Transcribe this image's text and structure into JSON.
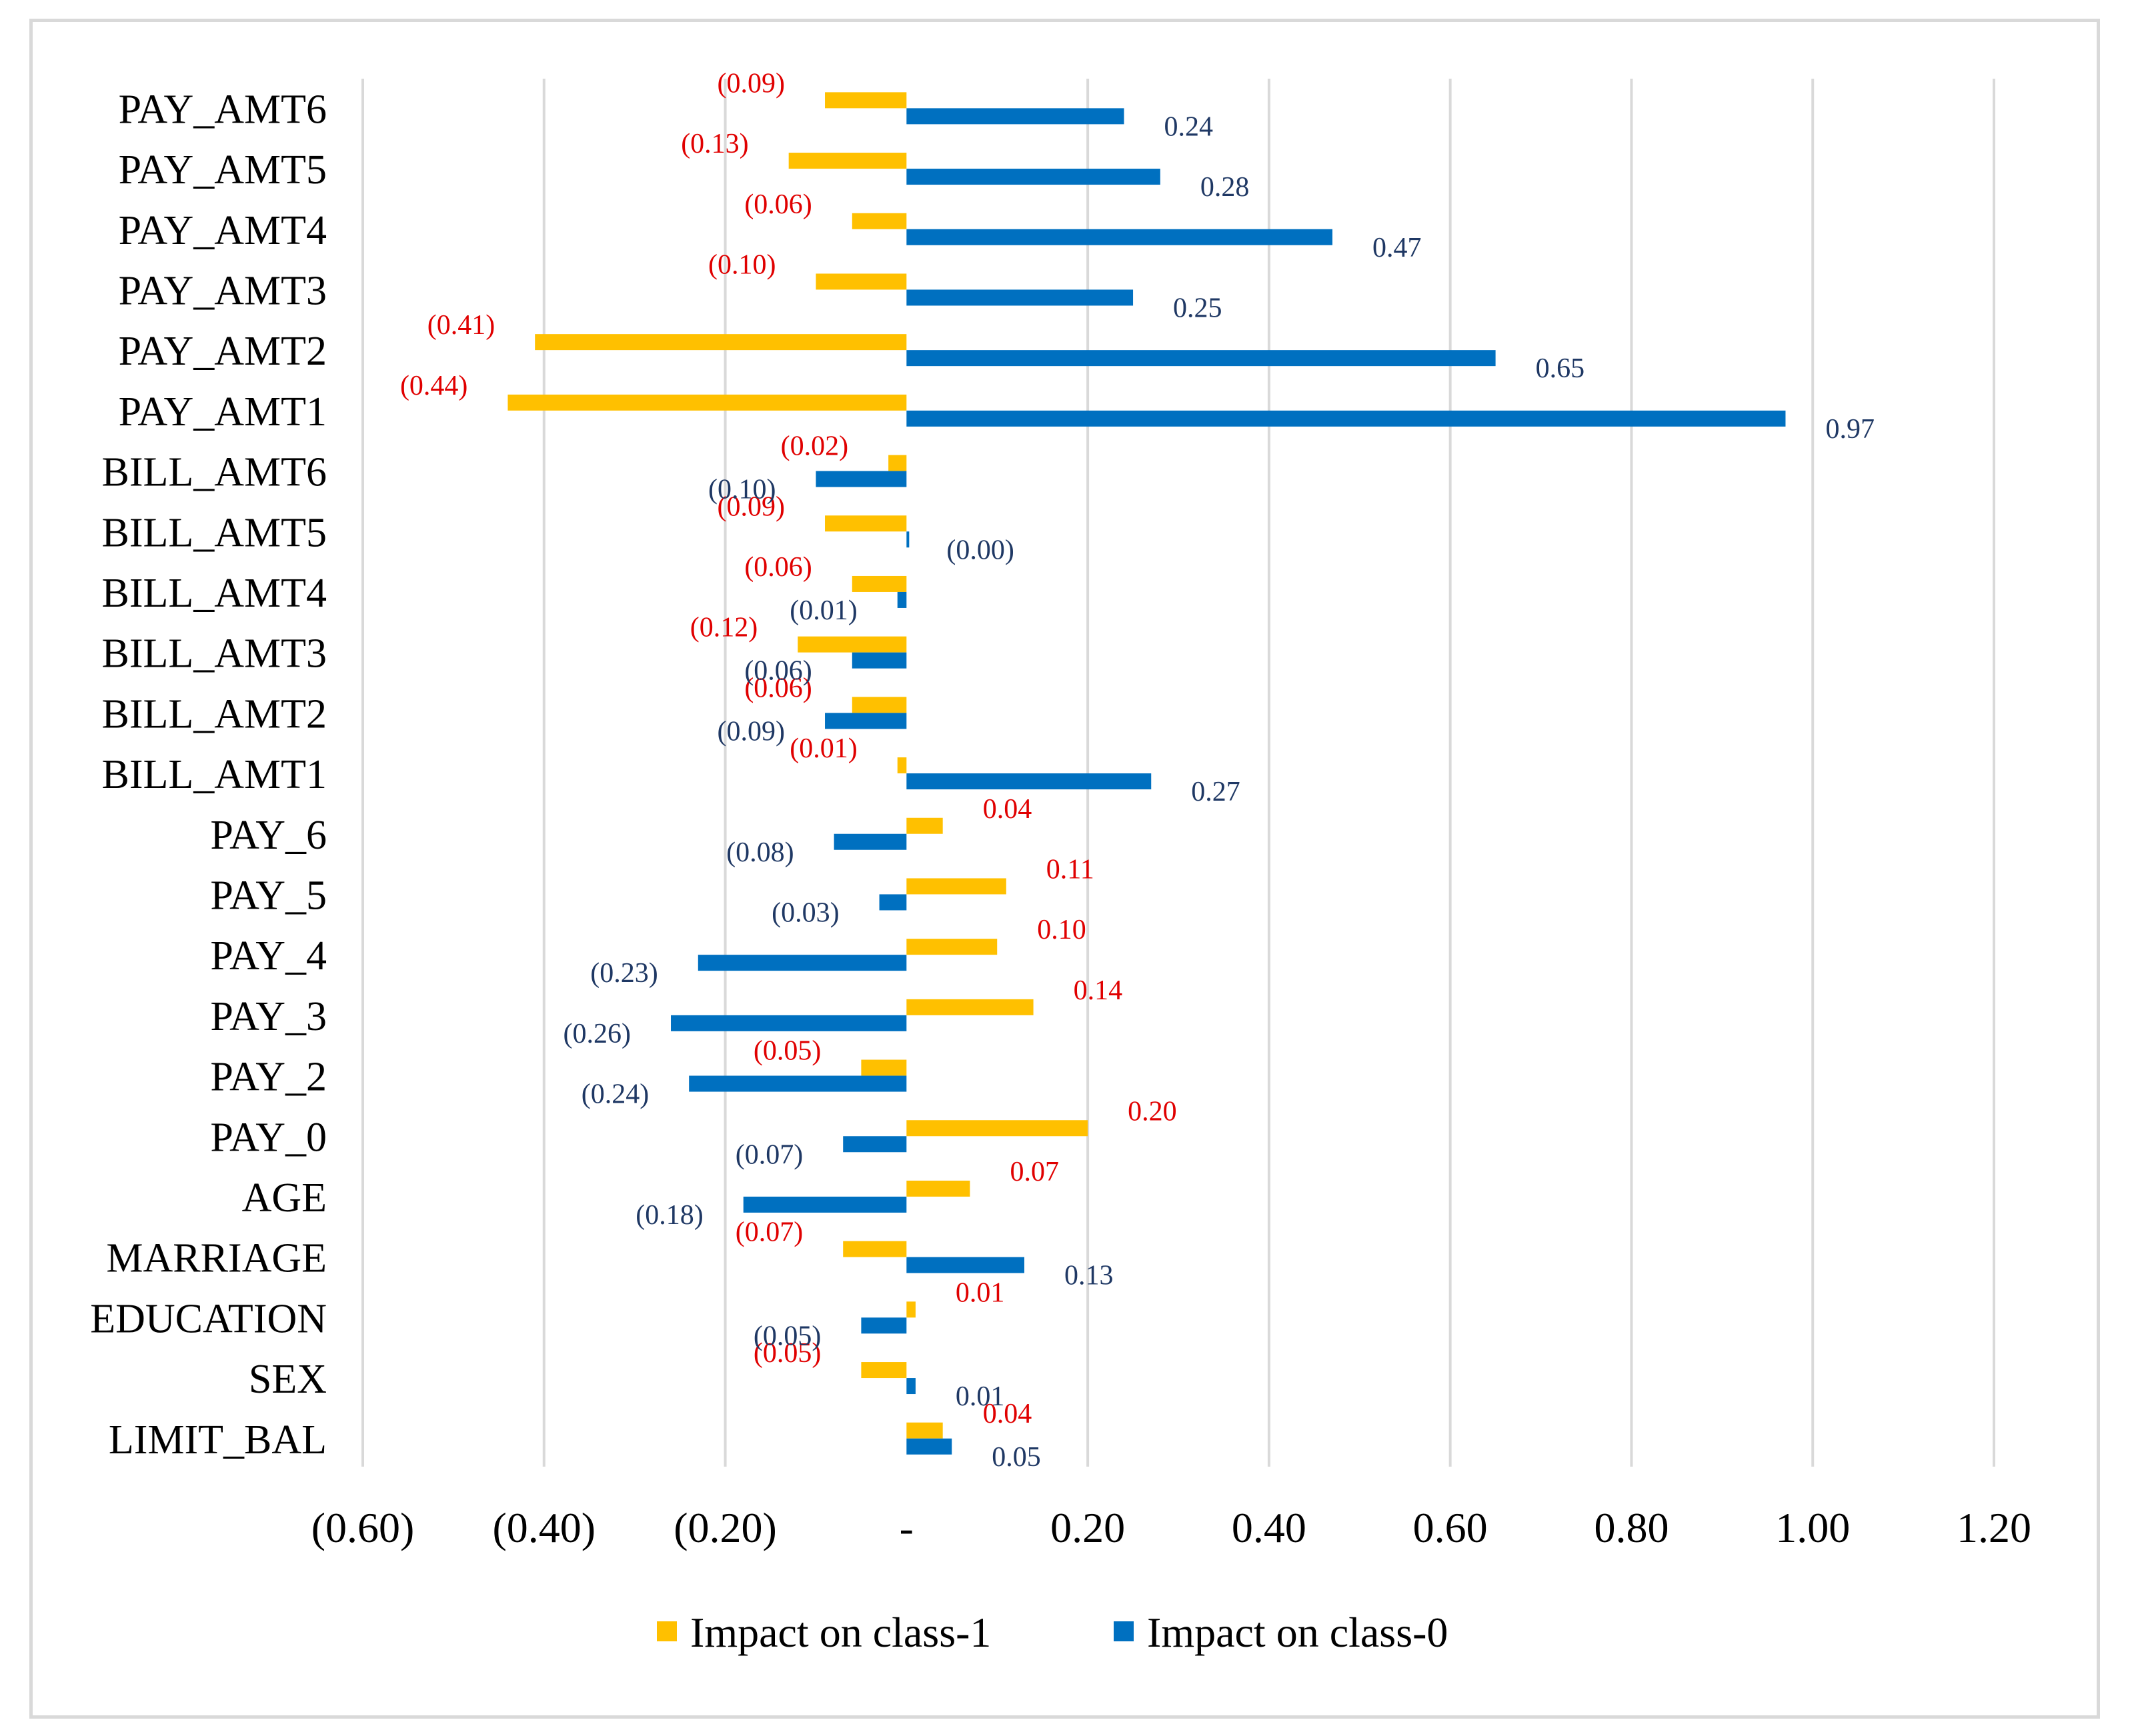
{
  "chart_data": {
    "type": "bar",
    "orientation": "horizontal",
    "title": "",
    "xlabel": "",
    "ylabel": "",
    "xlim": [
      -0.6,
      1.2
    ],
    "x_ticks": [
      -0.6,
      -0.4,
      -0.2,
      0,
      0.2,
      0.4,
      0.6,
      0.8,
      1.0,
      1.2
    ],
    "x_tick_labels": [
      "(0.60)",
      "(0.40)",
      "(0.20)",
      "-",
      "0.20",
      "0.40",
      "0.60",
      "0.80",
      "1.00",
      "1.20"
    ],
    "grid": "vertical",
    "legend_position": "bottom",
    "categories": [
      "PAY_AMT6",
      "PAY_AMT5",
      "PAY_AMT4",
      "PAY_AMT3",
      "PAY_AMT2",
      "PAY_AMT1",
      "BILL_AMT6",
      "BILL_AMT5",
      "BILL_AMT4",
      "BILL_AMT3",
      "BILL_AMT2",
      "BILL_AMT1",
      "PAY_6",
      "PAY_5",
      "PAY_4",
      "PAY_3",
      "PAY_2",
      "PAY_0",
      "AGE",
      "MARRIAGE",
      "EDUCATION",
      "SEX",
      "LIMIT_BAL"
    ],
    "series": [
      {
        "name": "Impact on class-1",
        "color": "#FFC000",
        "label_color": "#E00000",
        "values": [
          -0.09,
          -0.13,
          -0.06,
          -0.1,
          -0.41,
          -0.44,
          -0.02,
          -0.09,
          -0.06,
          -0.12,
          -0.06,
          -0.01,
          0.04,
          0.11,
          0.1,
          0.14,
          -0.05,
          0.2,
          0.07,
          -0.07,
          0.01,
          -0.05,
          0.04
        ],
        "labels": [
          "(0.09)",
          "(0.13)",
          "(0.06)",
          "(0.10)",
          "(0.41)",
          "(0.44)",
          "(0.02)",
          "(0.09)",
          "(0.06)",
          "(0.12)",
          "(0.06)",
          "(0.01)",
          "0.04",
          "0.11",
          "0.10",
          "0.14",
          "(0.05)",
          "0.20",
          "0.07",
          "(0.07)",
          "0.01",
          "(0.05)",
          "0.04"
        ]
      },
      {
        "name": "Impact on class-0",
        "color": "#0070C0",
        "label_color": "#1F3864",
        "values": [
          0.24,
          0.28,
          0.47,
          0.25,
          0.65,
          0.97,
          -0.1,
          -0.0,
          -0.01,
          -0.06,
          -0.09,
          0.27,
          -0.08,
          -0.03,
          -0.23,
          -0.26,
          -0.24,
          -0.07,
          -0.18,
          0.13,
          -0.05,
          0.01,
          0.05
        ],
        "labels": [
          "0.24",
          "0.28",
          "0.47",
          "0.25",
          "0.65",
          "0.97",
          "(0.10)",
          "(0.00)",
          "(0.01)",
          "(0.06)",
          "(0.09)",
          "0.27",
          "(0.08)",
          "(0.03)",
          "(0.23)",
          "(0.26)",
          "(0.24)",
          "(0.07)",
          "(0.18)",
          "0.13",
          "(0.05)",
          "0.01",
          "0.05"
        ]
      }
    ]
  }
}
